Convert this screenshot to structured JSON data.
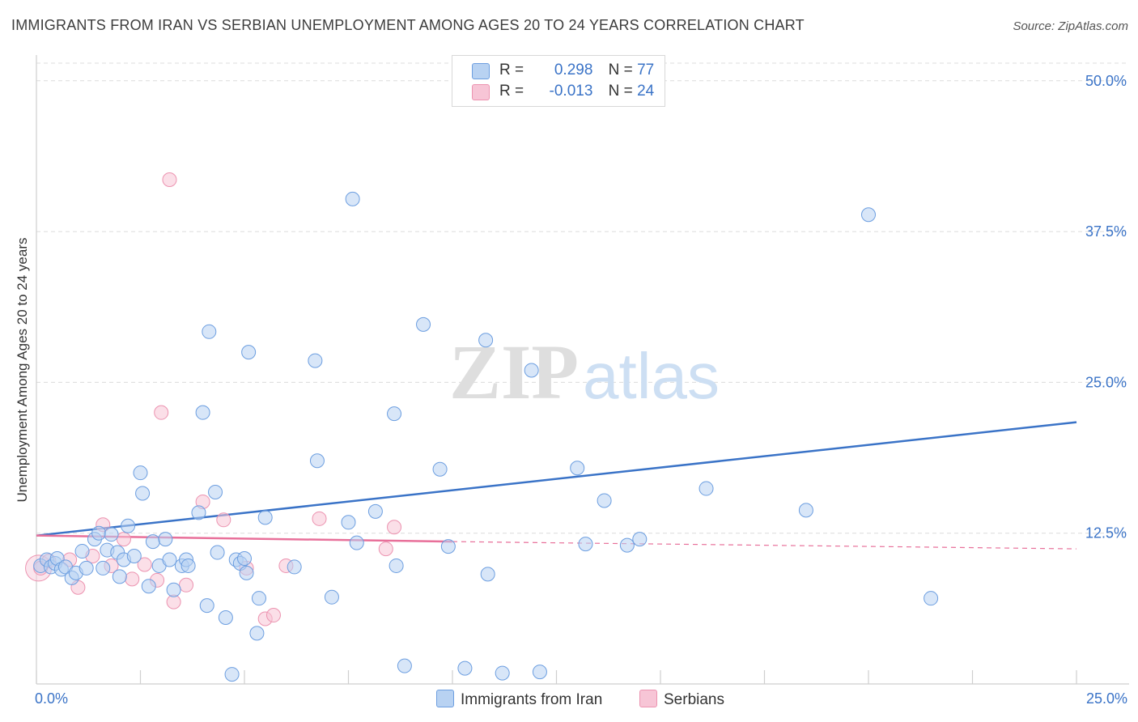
{
  "title": "IMMIGRANTS FROM IRAN VS SERBIAN UNEMPLOYMENT AMONG AGES 20 TO 24 YEARS CORRELATION CHART",
  "source": "Source: ZipAtlas.com",
  "legend": {
    "rows": [
      {
        "r_label": "R =",
        "r_value": "0.298",
        "n_label": "N =",
        "n_value": "77"
      },
      {
        "r_label": "R =",
        "r_value": "-0.013",
        "n_label": "N =",
        "n_value": "24"
      }
    ]
  },
  "bottom_legend": {
    "iran": "Immigrants from Iran",
    "serbians": "Serbians"
  },
  "watermark": {
    "zip": "ZIP",
    "atlas": "atlas"
  },
  "colors": {
    "iran_fill": "#b8d2f2",
    "iran_stroke": "#6c9ee0",
    "iran_line": "#3a73c7",
    "serb_fill": "#f7c5d6",
    "serb_stroke": "#ec93b0",
    "serb_line": "#e8709a",
    "axis_text": "#3a73c7"
  },
  "chart_data": {
    "type": "scatter",
    "title": "IMMIGRANTS FROM IRAN VS SERBIAN UNEMPLOYMENT AMONG AGES 20 TO 24 YEARS CORRELATION CHART",
    "xlabel": "",
    "ylabel": "Unemployment Among Ages 20 to 24 years",
    "xlim": [
      0,
      25
    ],
    "ylim": [
      0,
      52
    ],
    "x_tick_labels": [
      "0.0%",
      "25.0%"
    ],
    "y_ticks": [
      12.5,
      25,
      37.5,
      50
    ],
    "y_tick_labels": [
      "12.5%",
      "25.0%",
      "37.5%",
      "50.0%"
    ],
    "series": [
      {
        "name": "Immigrants from Iran",
        "r": 0.298,
        "n": 77,
        "trend": {
          "x": [
            0,
            25
          ],
          "y": [
            12.3,
            21.7
          ],
          "style": "solid"
        },
        "points": [
          [
            0.1,
            9.8
          ],
          [
            0.25,
            10.3
          ],
          [
            0.35,
            9.7
          ],
          [
            0.45,
            10.0
          ],
          [
            0.5,
            10.4
          ],
          [
            0.6,
            9.5
          ],
          [
            0.7,
            9.7
          ],
          [
            0.85,
            8.8
          ],
          [
            0.95,
            9.2
          ],
          [
            1.1,
            11.0
          ],
          [
            1.2,
            9.6
          ],
          [
            1.4,
            12.0
          ],
          [
            1.5,
            12.5
          ],
          [
            1.6,
            9.6
          ],
          [
            1.7,
            11.1
          ],
          [
            1.8,
            12.4
          ],
          [
            1.95,
            10.9
          ],
          [
            2.0,
            8.9
          ],
          [
            2.1,
            10.3
          ],
          [
            2.2,
            13.1
          ],
          [
            2.35,
            10.6
          ],
          [
            2.5,
            17.5
          ],
          [
            2.55,
            15.8
          ],
          [
            2.7,
            8.1
          ],
          [
            2.8,
            11.8
          ],
          [
            2.95,
            9.8
          ],
          [
            3.1,
            12.0
          ],
          [
            3.2,
            10.3
          ],
          [
            3.3,
            7.8
          ],
          [
            3.5,
            9.8
          ],
          [
            3.6,
            10.3
          ],
          [
            3.65,
            9.8
          ],
          [
            3.9,
            14.2
          ],
          [
            4.0,
            22.5
          ],
          [
            4.1,
            6.5
          ],
          [
            4.15,
            29.2
          ],
          [
            4.3,
            15.9
          ],
          [
            4.35,
            10.9
          ],
          [
            4.55,
            5.5
          ],
          [
            4.7,
            0.8
          ],
          [
            4.8,
            10.3
          ],
          [
            4.9,
            10.0
          ],
          [
            5.0,
            10.4
          ],
          [
            5.05,
            9.2
          ],
          [
            5.1,
            27.5
          ],
          [
            5.3,
            4.2
          ],
          [
            5.35,
            7.1
          ],
          [
            5.5,
            13.8
          ],
          [
            6.2,
            9.7
          ],
          [
            6.7,
            26.8
          ],
          [
            6.75,
            18.5
          ],
          [
            7.1,
            7.2
          ],
          [
            7.5,
            13.4
          ],
          [
            7.6,
            40.2
          ],
          [
            7.7,
            11.7
          ],
          [
            8.15,
            14.3
          ],
          [
            8.6,
            22.4
          ],
          [
            8.65,
            9.8
          ],
          [
            8.85,
            1.5
          ],
          [
            9.3,
            29.8
          ],
          [
            9.7,
            17.8
          ],
          [
            9.9,
            11.4
          ],
          [
            10.3,
            1.3
          ],
          [
            10.8,
            28.5
          ],
          [
            10.85,
            9.1
          ],
          [
            11.9,
            26.0
          ],
          [
            12.1,
            1.0
          ],
          [
            13.0,
            17.9
          ],
          [
            13.2,
            11.6
          ],
          [
            13.65,
            15.2
          ],
          [
            14.2,
            11.5
          ],
          [
            14.5,
            12.0
          ],
          [
            16.1,
            16.2
          ],
          [
            18.5,
            14.4
          ],
          [
            20.0,
            38.9
          ],
          [
            21.5,
            7.1
          ],
          [
            11.2,
            0.9
          ]
        ]
      },
      {
        "name": "Serbians",
        "r": -0.013,
        "n": 24,
        "trend": {
          "x": [
            0,
            10
          ],
          "y": [
            12.3,
            11.8
          ],
          "style": "solid",
          "extension": {
            "x": [
              10,
              25
            ],
            "y": [
              11.8,
              11.2
            ],
            "style": "dashed"
          }
        },
        "points": [
          [
            0.1,
            9.6
          ],
          [
            0.3,
            10.2
          ],
          [
            0.8,
            10.3
          ],
          [
            1.0,
            8.0
          ],
          [
            1.35,
            10.6
          ],
          [
            1.6,
            13.2
          ],
          [
            1.8,
            9.8
          ],
          [
            2.1,
            12.0
          ],
          [
            2.3,
            8.7
          ],
          [
            2.6,
            9.9
          ],
          [
            2.9,
            8.6
          ],
          [
            3.0,
            22.5
          ],
          [
            3.2,
            41.8
          ],
          [
            3.3,
            6.8
          ],
          [
            3.6,
            8.2
          ],
          [
            4.0,
            15.1
          ],
          [
            4.5,
            13.6
          ],
          [
            5.05,
            9.6
          ],
          [
            5.5,
            5.4
          ],
          [
            5.7,
            5.7
          ],
          [
            6.0,
            9.8
          ],
          [
            6.8,
            13.7
          ],
          [
            8.4,
            11.2
          ],
          [
            8.6,
            13.0
          ]
        ]
      }
    ]
  }
}
